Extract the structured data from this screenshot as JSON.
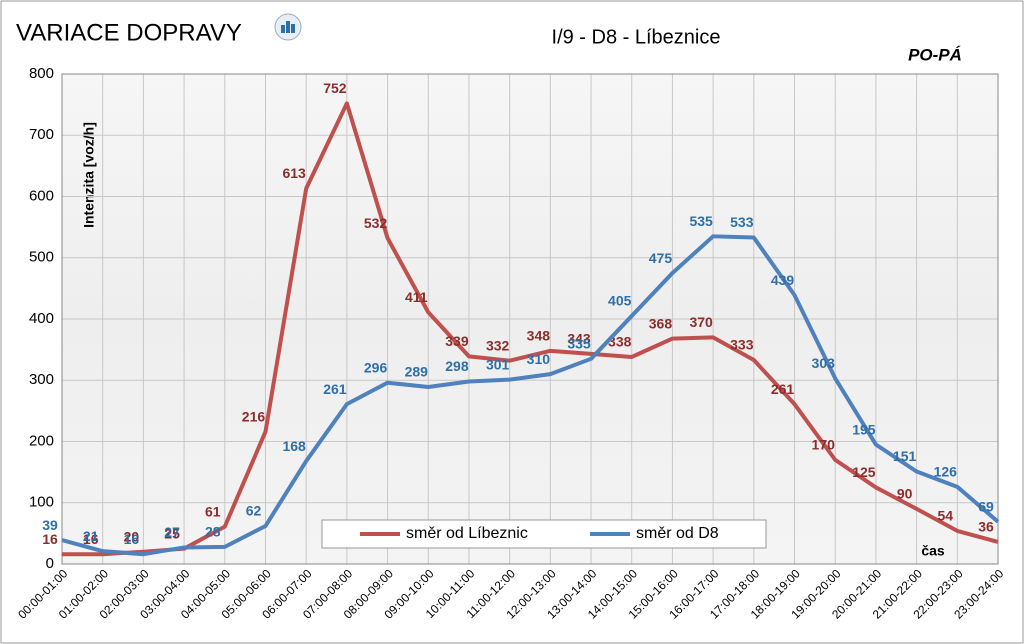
{
  "chart_data": {
    "type": "line",
    "title": "VARIACE DOPRAVY",
    "subtitle": "I/9 - D8 - Líbeznice",
    "annotation": "PO-PÁ",
    "x_label": "čas",
    "y_label": "Intenzita  [voz/h]",
    "categories": [
      "00:00-01:00",
      "01:00-02:00",
      "02:00-03:00",
      "03:00-04:00",
      "04:00-05:00",
      "05:00-06:00",
      "06:00-07:00",
      "07:00-08:00",
      "08:00-09:00",
      "09:00-10:00",
      "10:00-11:00",
      "11:00-12:00",
      "12:00-13:00",
      "13:00-14:00",
      "14:00-15:00",
      "15:00-16:00",
      "16:00-17:00",
      "17:00-18:00",
      "18:00-19:00",
      "19:00-20:00",
      "20:00-21:00",
      "21:00-22:00",
      "22:00-23:00",
      "23:00-24:00"
    ],
    "series": [
      {
        "name": "směr od Líbeznic",
        "color": "#c0504d",
        "label_color": "#8b2e2b",
        "values": [
          16,
          16,
          20,
          25,
          61,
          216,
          613,
          752,
          532,
          411,
          339,
          332,
          348,
          343,
          338,
          368,
          370,
          333,
          261,
          170,
          125,
          90,
          54,
          36
        ]
      },
      {
        "name": "směr od D8",
        "color": "#4f81bd",
        "label_color": "#2e6fa8",
        "values": [
          39,
          21,
          16,
          27,
          28,
          62,
          168,
          261,
          296,
          289,
          298,
          301,
          310,
          335,
          405,
          475,
          535,
          533,
          439,
          303,
          195,
          151,
          126,
          69
        ]
      }
    ],
    "ylim": [
      0,
      800
    ],
    "yticks": [
      0,
      100,
      200,
      300,
      400,
      500,
      600,
      700,
      800
    ],
    "grid": true
  }
}
